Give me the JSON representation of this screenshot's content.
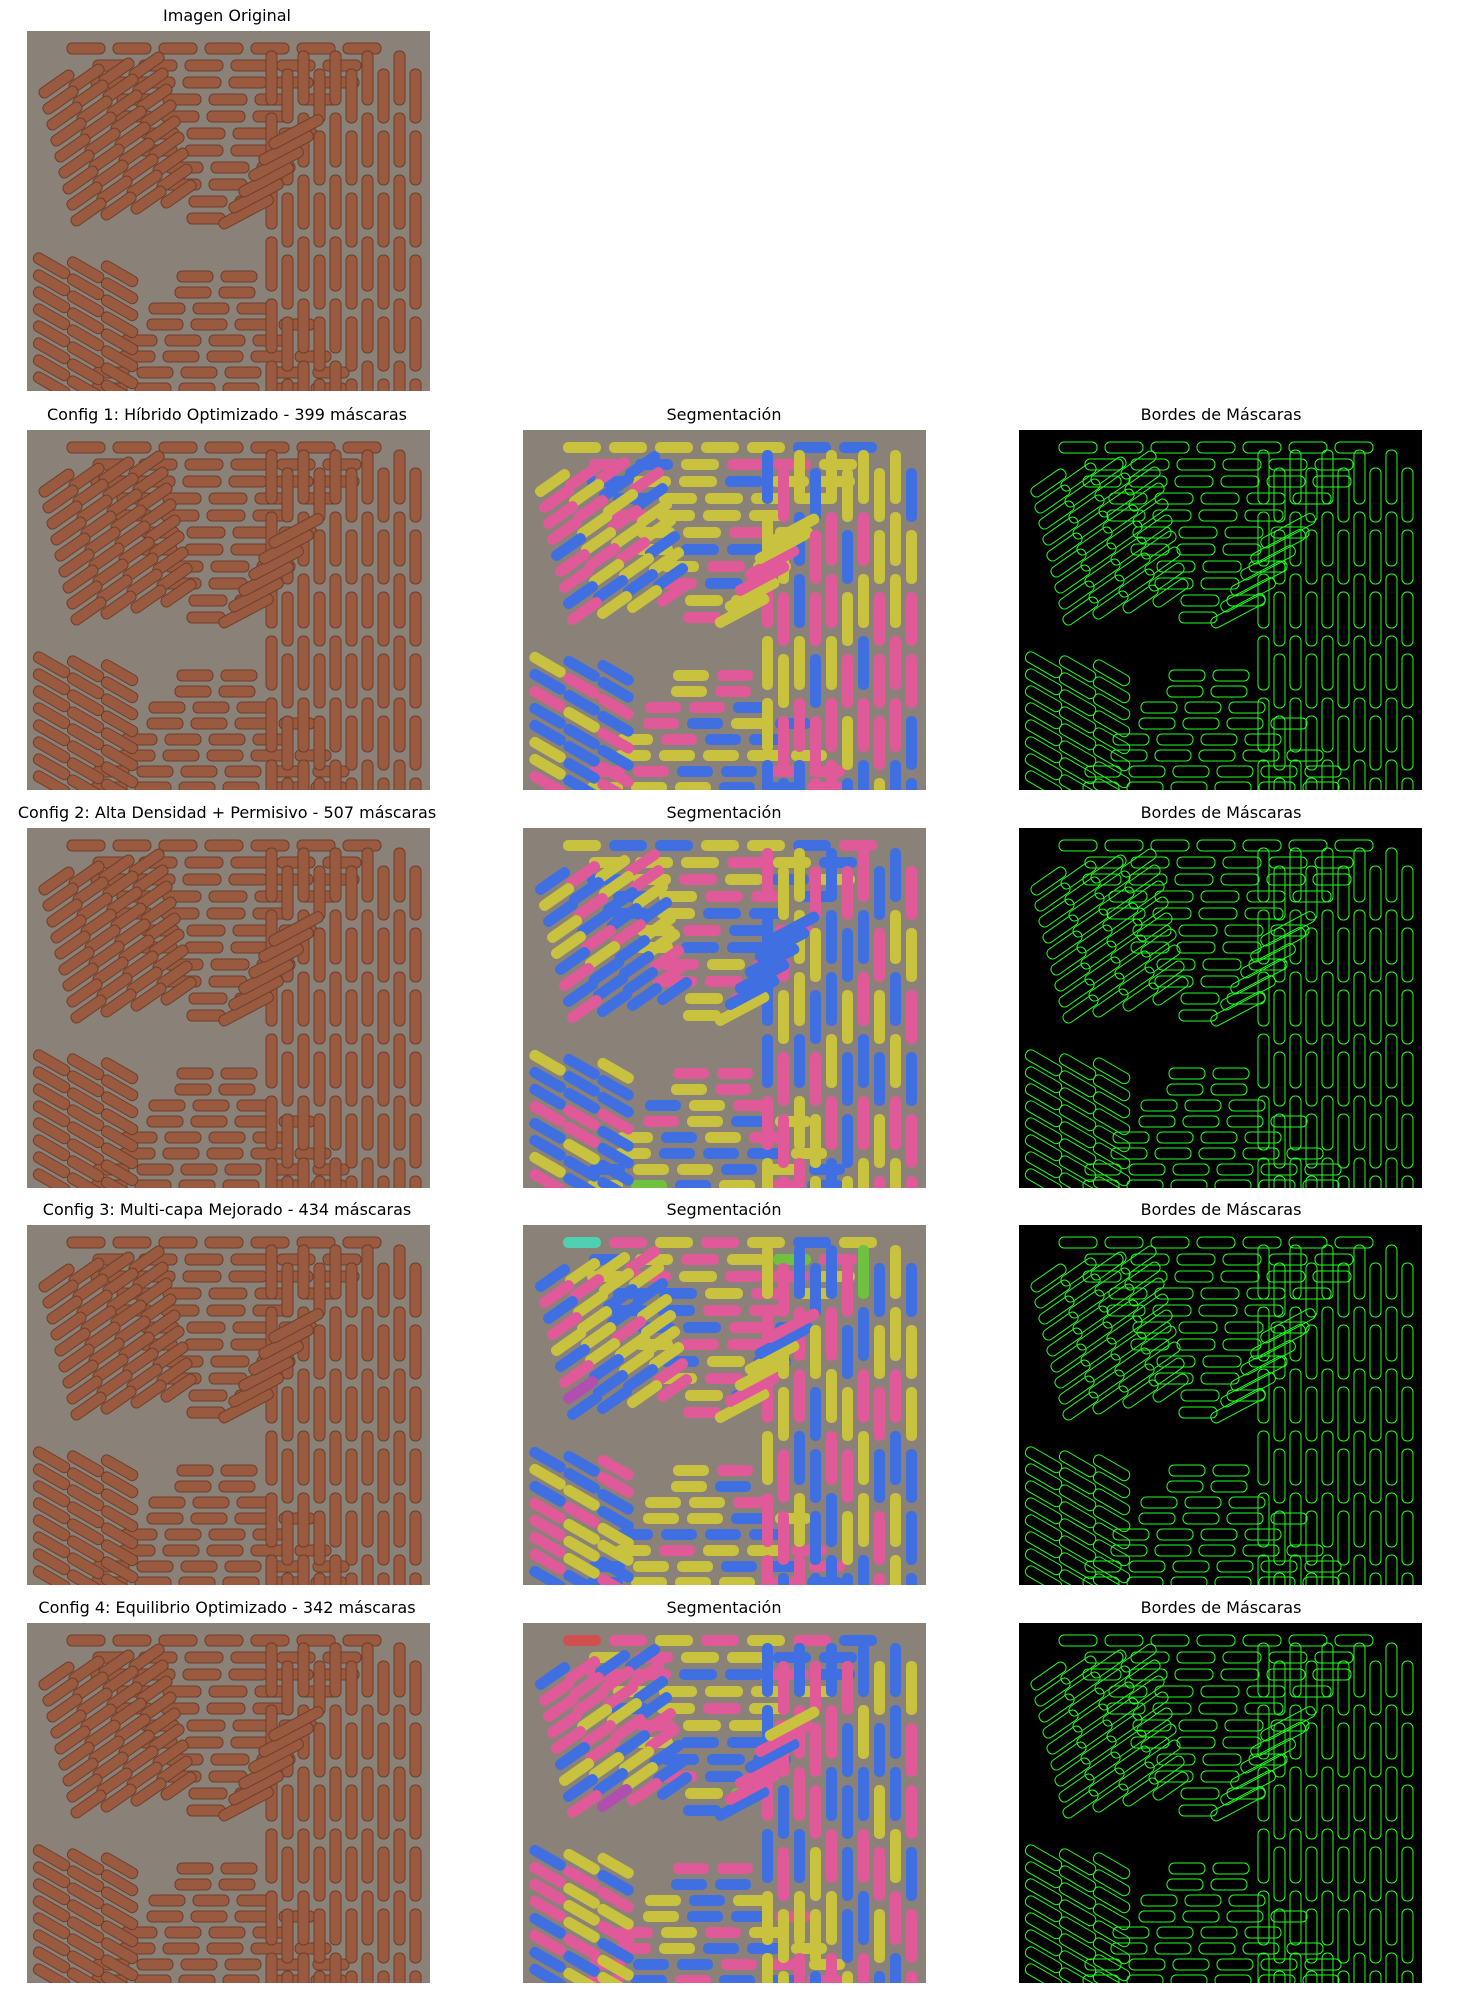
{
  "figure": {
    "rows": [
      {
        "title_original": "Imagen Original"
      },
      {
        "title_original": "Config 1: Híbrido Optimizado - 399 máscaras",
        "title_segmentation": "Segmentación",
        "title_edges": "Bordes de Máscaras"
      },
      {
        "title_original": "Config 2: Alta Densidad + Permisivo - 507 máscaras",
        "title_segmentation": "Segmentación",
        "title_edges": "Bordes de Máscaras"
      },
      {
        "title_original": "Config 3: Multi-capa Mejorado - 434 máscaras",
        "title_segmentation": "Segmentación",
        "title_edges": "Bordes de Máscaras"
      },
      {
        "title_original": "Config 4: Equilibrio Optimizado - 342 máscaras",
        "title_segmentation": "Segmentación",
        "title_edges": "Bordes de Máscaras"
      }
    ]
  },
  "colors": {
    "original_background": "#8a8278",
    "brick": "#9a5a40",
    "brick_dark": "#6e3e2c",
    "mask_edge": "#22ff22",
    "edge_background": "#000000",
    "segment_palette": [
      "#e05a9a",
      "#3fbf8f",
      "#8a4fd0",
      "#f08a3c",
      "#3f6fe0",
      "#6fc23f",
      "#d04f4f",
      "#3fb0c8",
      "#c8c23f",
      "#b04fb0",
      "#4fd0b0",
      "#e07070"
    ]
  }
}
